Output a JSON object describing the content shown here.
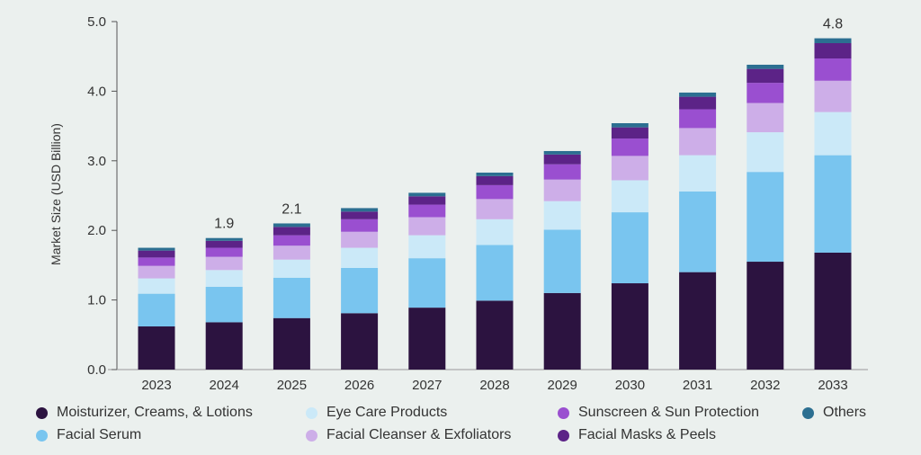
{
  "chart_data": {
    "type": "bar",
    "stacked": true,
    "title": "",
    "xlabel": "",
    "ylabel": "Market Size (USD Billion)",
    "ylim": [
      0,
      5
    ],
    "yticks": [
      "0.0",
      "1.0",
      "2.0",
      "3.0",
      "4.0",
      "5.0"
    ],
    "grid": false,
    "legend_position": "bottom",
    "categories": [
      "2023",
      "2024",
      "2025",
      "2026",
      "2027",
      "2028",
      "2029",
      "2030",
      "2031",
      "2032",
      "2033"
    ],
    "series": [
      {
        "name": "Moisturizer, Creams, & Lotions",
        "color": "#2c1340",
        "values": [
          0.62,
          0.68,
          0.74,
          0.81,
          0.89,
          0.99,
          1.1,
          1.24,
          1.4,
          1.55,
          1.68
        ]
      },
      {
        "name": "Facial Serum",
        "color": "#79c5ef",
        "values": [
          0.47,
          0.51,
          0.58,
          0.65,
          0.71,
          0.8,
          0.91,
          1.02,
          1.16,
          1.29,
          1.4
        ]
      },
      {
        "name": "Eye Care Products",
        "color": "#cbe9f8",
        "values": [
          0.22,
          0.24,
          0.26,
          0.29,
          0.33,
          0.37,
          0.41,
          0.46,
          0.52,
          0.57,
          0.62
        ]
      },
      {
        "name": "Facial Cleanser & Exfoliators",
        "color": "#cdaee8",
        "values": [
          0.18,
          0.19,
          0.2,
          0.23,
          0.26,
          0.29,
          0.31,
          0.35,
          0.39,
          0.42,
          0.45
        ]
      },
      {
        "name": "Sunscreen & Sun Protection",
        "color": "#9a4fd0",
        "values": [
          0.12,
          0.13,
          0.15,
          0.18,
          0.18,
          0.2,
          0.22,
          0.25,
          0.27,
          0.29,
          0.32
        ]
      },
      {
        "name": "Facial Masks & Peels",
        "color": "#5c2387",
        "values": [
          0.1,
          0.1,
          0.12,
          0.11,
          0.12,
          0.13,
          0.14,
          0.16,
          0.18,
          0.2,
          0.22
        ]
      },
      {
        "name": "Others",
        "color": "#2c6f91",
        "values": [
          0.04,
          0.04,
          0.05,
          0.05,
          0.05,
          0.05,
          0.05,
          0.06,
          0.06,
          0.06,
          0.07
        ]
      }
    ],
    "annotations": [
      {
        "category": "2024",
        "label": "1.9"
      },
      {
        "category": "2025",
        "label": "2.1"
      },
      {
        "category": "2033",
        "label": "4.8"
      }
    ]
  },
  "legend_rows": [
    [
      {
        "label": "Moisturizer, Creams, & Lotions",
        "color": "#2c1340"
      },
      {
        "label": "Eye Care Products",
        "color": "#cbe9f8"
      },
      {
        "label": "Sunscreen & Sun Protection",
        "color": "#9a4fd0"
      },
      {
        "label": "Others",
        "color": "#2c6f91"
      }
    ],
    [
      {
        "label": "Facial Serum",
        "color": "#79c5ef"
      },
      {
        "label": "Facial Cleanser & Exfoliators",
        "color": "#cdaee8"
      },
      {
        "label": "Facial Masks & Peels",
        "color": "#5c2387"
      }
    ]
  ]
}
